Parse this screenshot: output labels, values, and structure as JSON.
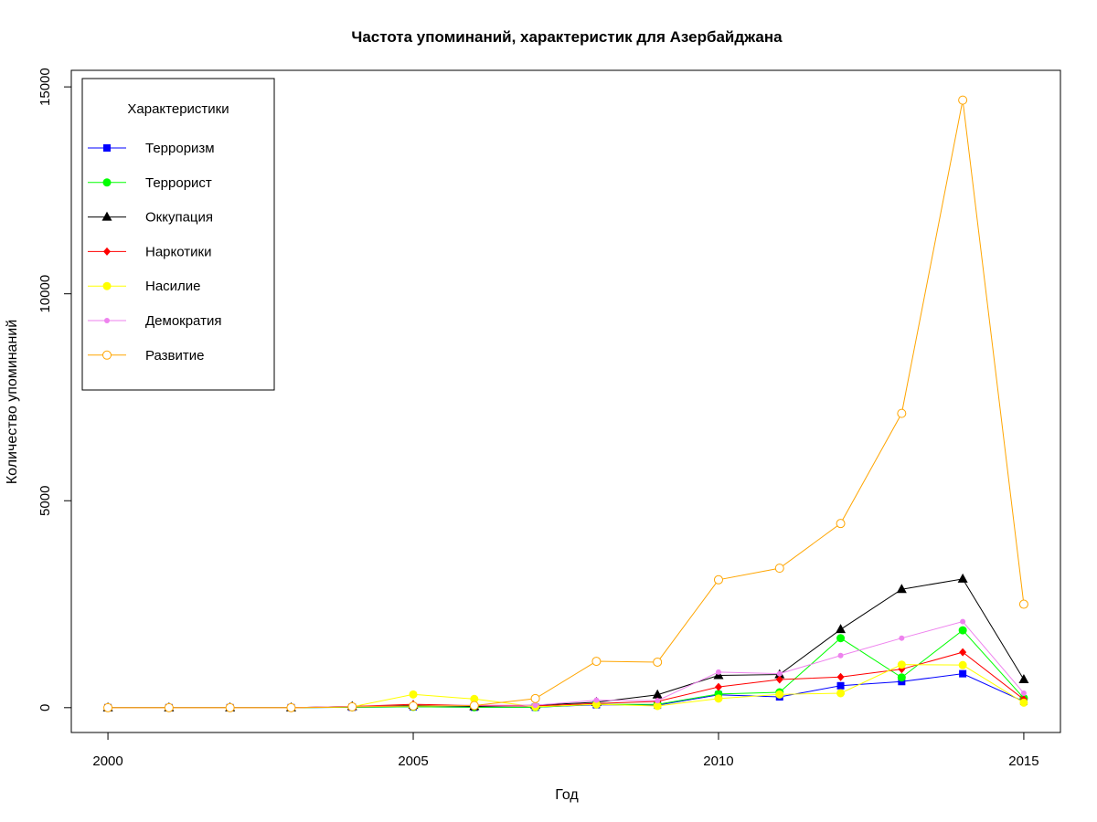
{
  "chart_data": {
    "type": "line",
    "title": "Частота упоминаний, характеристик для Азербайджана",
    "xlabel": "Год",
    "ylabel": "Количество упоминаний",
    "xlim": [
      1999.4,
      2015.6
    ],
    "ylim": [
      -600,
      15400
    ],
    "x_ticks": [
      "2000",
      "2005",
      "2010",
      "2015"
    ],
    "y_ticks": [
      "0",
      "5000",
      "10000",
      "15000"
    ],
    "x": [
      2000,
      2001,
      2002,
      2003,
      2004,
      2005,
      2006,
      2007,
      2008,
      2009,
      2010,
      2011,
      2012,
      2013,
      2014,
      2015
    ],
    "grid": false,
    "legend": {
      "title": "Характеристики",
      "position": "top-left"
    },
    "series": [
      {
        "name": "Терроризм",
        "color": "#0000ff",
        "marker": "square",
        "values": [
          0,
          0,
          0,
          0,
          10,
          20,
          10,
          10,
          70,
          60,
          310,
          260,
          530,
          630,
          820,
          150
        ]
      },
      {
        "name": "Террорист",
        "color": "#00ff00",
        "marker": "circle-filled",
        "values": [
          0,
          0,
          0,
          0,
          10,
          20,
          10,
          10,
          80,
          80,
          330,
          370,
          1680,
          730,
          1870,
          230
        ]
      },
      {
        "name": "Оккупация",
        "color": "#000000",
        "marker": "triangle",
        "values": [
          0,
          0,
          0,
          0,
          30,
          60,
          30,
          60,
          130,
          310,
          780,
          800,
          1890,
          2860,
          3110,
          680
        ]
      },
      {
        "name": "Наркотики",
        "color": "#ff0000",
        "marker": "diamond",
        "values": [
          0,
          0,
          0,
          0,
          30,
          80,
          50,
          40,
          100,
          150,
          500,
          680,
          740,
          930,
          1340,
          200
        ]
      },
      {
        "name": "Насилие",
        "color": "#ffff00",
        "marker": "circle-filled",
        "values": [
          0,
          0,
          0,
          0,
          20,
          320,
          210,
          20,
          80,
          40,
          220,
          320,
          350,
          1040,
          1030,
          120
        ]
      },
      {
        "name": "Демократия",
        "color": "#ee82ee",
        "marker": "circle-small",
        "values": [
          0,
          0,
          0,
          0,
          30,
          40,
          60,
          60,
          180,
          170,
          860,
          820,
          1260,
          1680,
          2080,
          350
        ]
      },
      {
        "name": "Развитие",
        "color": "#ffa500",
        "marker": "circle-open",
        "values": [
          0,
          0,
          0,
          0,
          20,
          40,
          50,
          220,
          1120,
          1100,
          3090,
          3370,
          4450,
          7110,
          14680,
          2500
        ]
      }
    ]
  }
}
